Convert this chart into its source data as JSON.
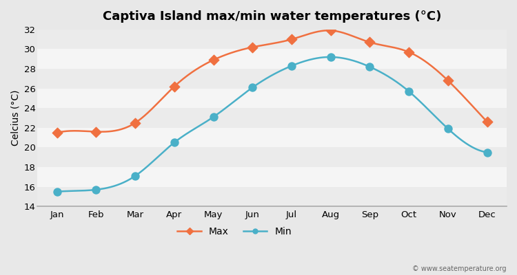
{
  "months": [
    "Jan",
    "Feb",
    "Mar",
    "Apr",
    "May",
    "Jun",
    "Jul",
    "Aug",
    "Sep",
    "Oct",
    "Nov",
    "Dec"
  ],
  "max_temps": [
    21.5,
    21.6,
    22.5,
    26.2,
    28.9,
    30.2,
    31.0,
    31.9,
    30.7,
    29.7,
    26.8,
    22.6
  ],
  "min_temps": [
    15.5,
    15.7,
    17.1,
    20.5,
    23.1,
    26.1,
    28.3,
    29.2,
    28.2,
    25.7,
    21.9,
    19.5
  ],
  "max_color": "#f07040",
  "min_color": "#4ab0c8",
  "title": "Captiva Island max/min water temperatures (°C)",
  "ylabel": "Celcius (°C)",
  "ylim": [
    14,
    32
  ],
  "yticks": [
    14,
    16,
    18,
    20,
    22,
    24,
    26,
    28,
    30,
    32
  ],
  "band_colors": [
    "#ebebeb",
    "#f5f5f5"
  ],
  "grid_color": "#cccccc",
  "outer_bg": "#e8e8e8",
  "watermark": "© www.seatemperature.org"
}
